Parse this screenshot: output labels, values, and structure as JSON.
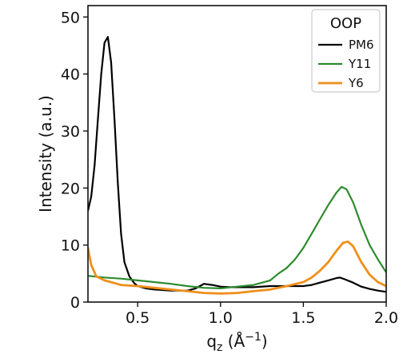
{
  "chart_data": {
    "type": "line",
    "title": "",
    "xlabel": "qz (Å⁻¹)",
    "xlabel_parts": {
      "base": "q",
      "sub": "z",
      "unit_open": " (Å",
      "sup": "−1",
      "unit_close": ")"
    },
    "ylabel": "Intensity (a.u.)",
    "xlim": [
      0.2,
      2.0
    ],
    "ylim": [
      0,
      52
    ],
    "x_ticks": [
      0.5,
      1.0,
      1.5,
      2.0
    ],
    "x_tick_labels": [
      "0.5",
      "1.0",
      "1.5",
      "2.0"
    ],
    "y_ticks": [
      0,
      10,
      20,
      30,
      40,
      50
    ],
    "y_tick_labels": [
      "0",
      "10",
      "20",
      "30",
      "40",
      "50"
    ],
    "grid": false,
    "legend": {
      "title": "OOP",
      "placement": "top-right"
    },
    "series": [
      {
        "name": "PM6",
        "color": "#000000",
        "x": [
          0.2,
          0.22,
          0.24,
          0.26,
          0.28,
          0.3,
          0.32,
          0.34,
          0.36,
          0.38,
          0.4,
          0.42,
          0.45,
          0.48,
          0.5,
          0.55,
          0.6,
          0.7,
          0.8,
          0.85,
          0.9,
          0.95,
          1.0,
          1.05,
          1.1,
          1.2,
          1.3,
          1.4,
          1.5,
          1.55,
          1.6,
          1.65,
          1.7,
          1.72,
          1.75,
          1.8,
          1.85,
          1.9,
          1.95,
          2.0
        ],
        "y": [
          16,
          18.5,
          24,
          32,
          40,
          45.5,
          46.5,
          42,
          32,
          21,
          12,
          7,
          4.5,
          3.3,
          2.8,
          2.4,
          2.2,
          2.0,
          2.0,
          2.4,
          3.2,
          3.0,
          2.7,
          2.6,
          2.6,
          2.6,
          2.8,
          2.8,
          2.8,
          3.0,
          3.4,
          3.8,
          4.2,
          4.3,
          4.0,
          3.4,
          2.7,
          2.3,
          2.0,
          1.8
        ]
      },
      {
        "name": "Y11",
        "color": "#2e8b2e",
        "x": [
          0.2,
          0.3,
          0.4,
          0.5,
          0.6,
          0.7,
          0.8,
          0.9,
          1.0,
          1.1,
          1.2,
          1.3,
          1.35,
          1.4,
          1.45,
          1.5,
          1.55,
          1.6,
          1.65,
          1.7,
          1.73,
          1.76,
          1.8,
          1.85,
          1.9,
          1.95,
          2.0
        ],
        "y": [
          4.6,
          4.3,
          4.1,
          3.8,
          3.5,
          3.2,
          2.8,
          2.5,
          2.4,
          2.7,
          3.0,
          3.8,
          5.0,
          6.0,
          7.5,
          9.5,
          12.0,
          14.5,
          17.0,
          19.2,
          20.2,
          19.8,
          17.5,
          13.5,
          10.0,
          7.5,
          5.2
        ]
      },
      {
        "name": "Y6",
        "color": "#ef8f1a",
        "x": [
          0.2,
          0.22,
          0.25,
          0.3,
          0.35,
          0.4,
          0.5,
          0.6,
          0.7,
          0.8,
          0.9,
          1.0,
          1.1,
          1.2,
          1.3,
          1.4,
          1.5,
          1.55,
          1.6,
          1.65,
          1.7,
          1.74,
          1.77,
          1.8,
          1.85,
          1.9,
          1.95,
          2.0
        ],
        "y": [
          9.5,
          6.5,
          4.5,
          3.8,
          3.4,
          3.0,
          2.8,
          2.5,
          2.2,
          1.9,
          1.6,
          1.5,
          1.6,
          1.9,
          2.2,
          2.8,
          3.5,
          4.3,
          5.5,
          7.0,
          9.0,
          10.4,
          10.6,
          9.8,
          7.0,
          4.8,
          3.5,
          2.8
        ]
      }
    ]
  }
}
